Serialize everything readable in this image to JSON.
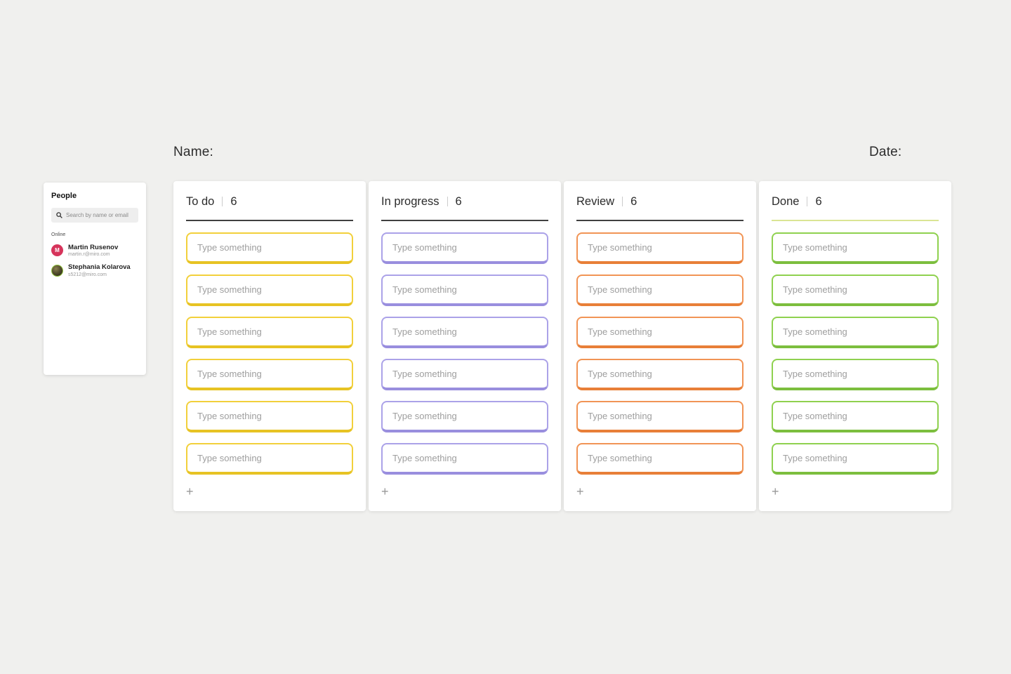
{
  "page": {
    "background": "#f0f0ee"
  },
  "header": {
    "name_label": "Name:",
    "date_label": "Date:"
  },
  "people_panel": {
    "title": "People",
    "search_placeholder": "Search by name or email",
    "status_label": "Online",
    "users": [
      {
        "name": "Martin Rusenov",
        "email": "martin.r@miro.com",
        "avatar_initial": "M",
        "avatar_color": "#d6345b"
      },
      {
        "name": "Stephania Kolarova",
        "email": "s5212@miro.com",
        "avatar_initial": "",
        "avatar_color": "#4c4630"
      }
    ]
  },
  "board": {
    "card_placeholder": "Type something",
    "add_label": "+",
    "columns": [
      {
        "title": "To do",
        "count": "6",
        "cards": 6,
        "accent": "#F2D03B",
        "accent_dark": "#E7C323",
        "divider": "#404040"
      },
      {
        "title": "In progress",
        "count": "6",
        "cards": 6,
        "accent": "#ABA2E8",
        "accent_dark": "#998EDE",
        "divider": "#404040"
      },
      {
        "title": "Review",
        "count": "6",
        "cards": 6,
        "accent": "#F19455",
        "accent_dark": "#E87F38",
        "divider": "#404040"
      },
      {
        "title": "Done",
        "count": "6",
        "cards": 6,
        "accent": "#8FD14F",
        "accent_dark": "#7CBE3E",
        "divider": "#DAE594"
      }
    ]
  }
}
